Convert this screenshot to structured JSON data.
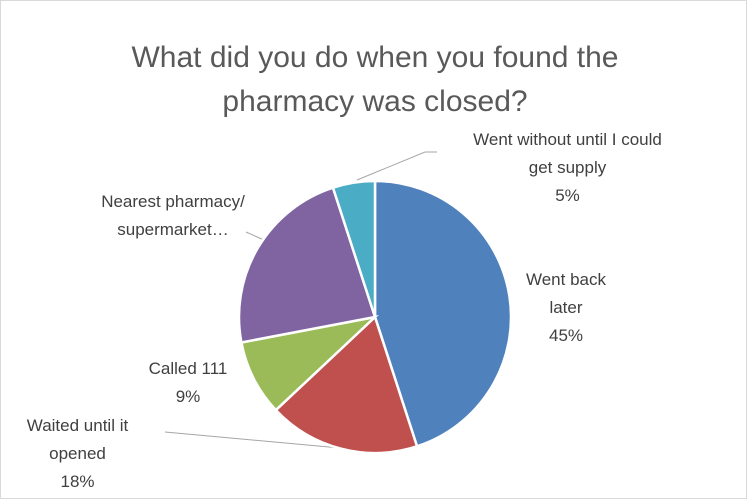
{
  "chart_data": {
    "type": "pie",
    "title": "What did you do when you found the pharmacy was closed?",
    "categories": [
      "Went back later",
      "Waited until it opened",
      "Called 111",
      "Nearest pharmacy/supermarket…",
      "Went without until I could get supply"
    ],
    "values": [
      45,
      18,
      9,
      23,
      5
    ],
    "value_labels": [
      "45%",
      "18%",
      "9%",
      null,
      "5%"
    ],
    "colors": [
      "#4f81bd",
      "#c0504d",
      "#9bbb59",
      "#8064a2",
      "#4bacc6"
    ]
  }
}
